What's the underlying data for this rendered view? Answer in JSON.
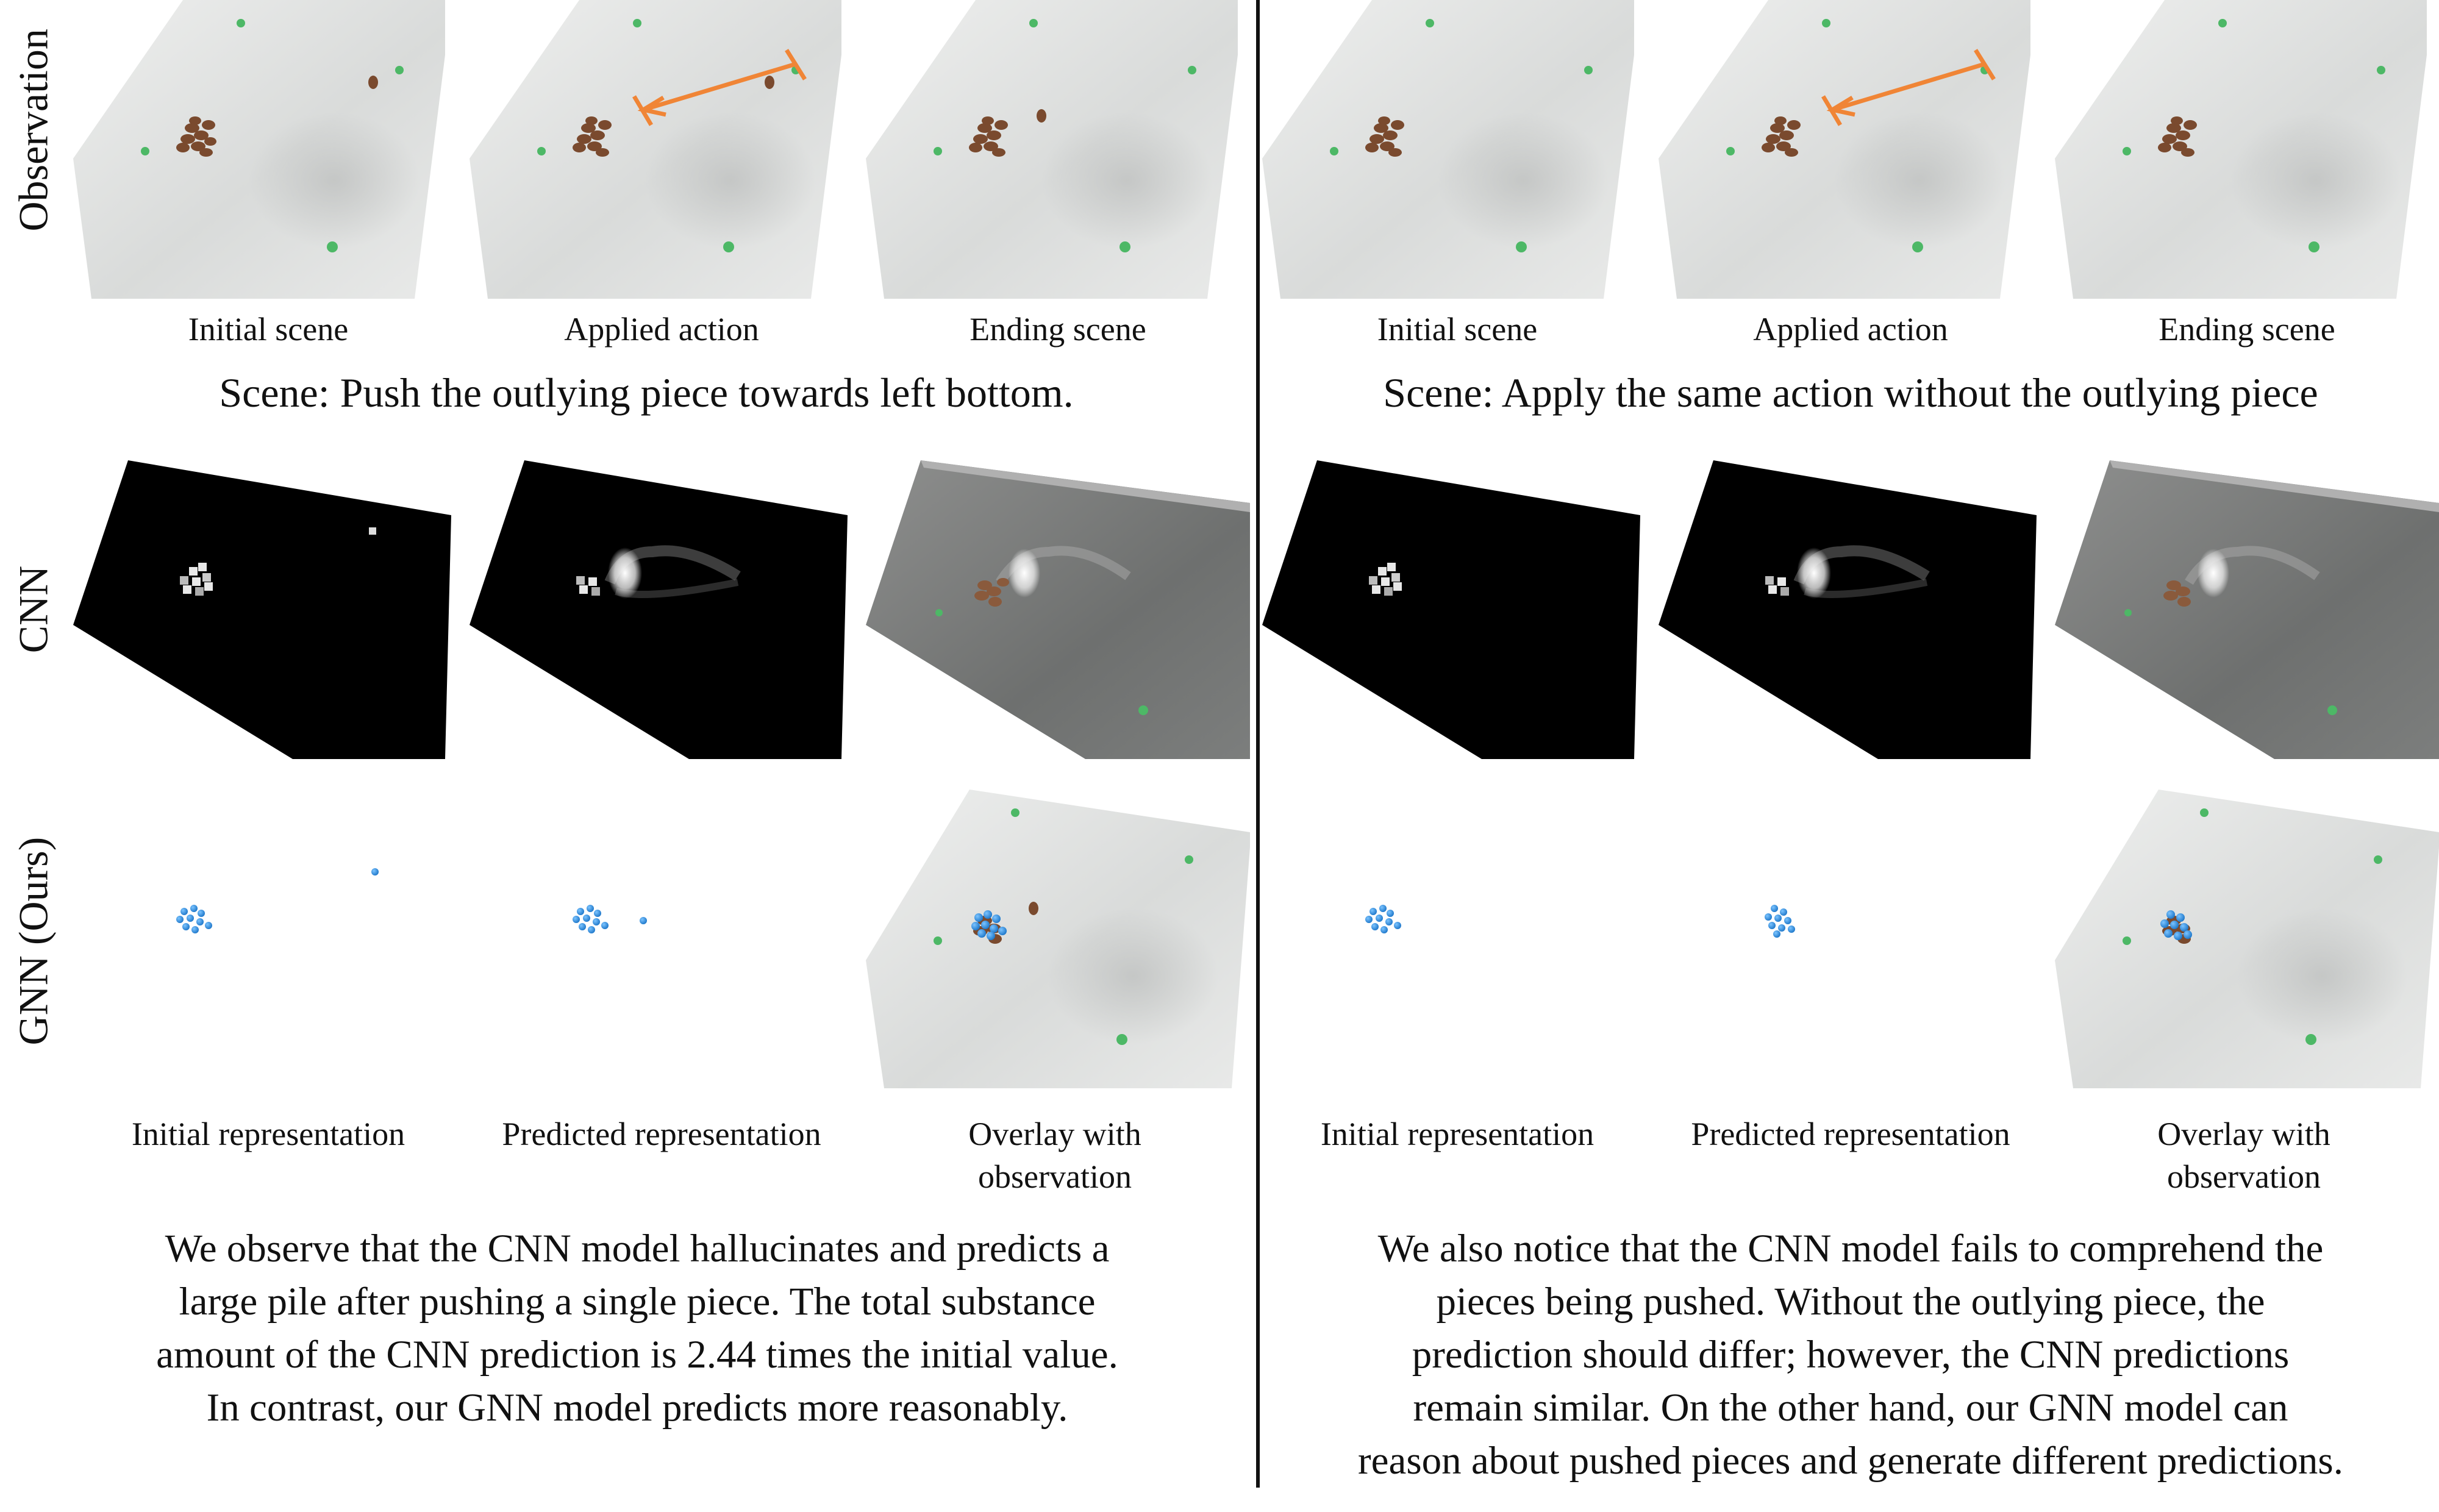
{
  "row_labels": [
    "Observation",
    "CNN",
    "GNN (Ours)"
  ],
  "top_captions": [
    "Initial scene",
    "Applied action",
    "Ending scene"
  ],
  "bottom_captions": [
    "Initial representation",
    "Predicted representation",
    "Overlay with\nobservation"
  ],
  "left": {
    "scene": "Scene: Push the outlying piece towards left bottom.",
    "paragraph": [
      "We observe that the CNN model hallucinates and predicts a",
      "large pile after pushing a single piece. The total substance",
      "amount of the CNN prediction is 2.44 times the initial value.",
      "In contrast, our GNN model predicts more reasonably."
    ]
  },
  "right": {
    "scene": "Scene: Apply the same action without the outlying piece",
    "paragraph": [
      "We also notice that the CNN model fails to comprehend the",
      "pieces being pushed. Without the outlying piece, the",
      "prediction should differ; however, the CNN predictions",
      "remain similar. On the other hand, our GNN model can",
      "reason about pushed pieces and generate different predictions."
    ]
  },
  "colors": {
    "arrow": "#f08536",
    "marker": "#4db866",
    "bean": "#7a4a2e",
    "particle": "#2a8ee0",
    "surface": "#e6e7e6"
  }
}
